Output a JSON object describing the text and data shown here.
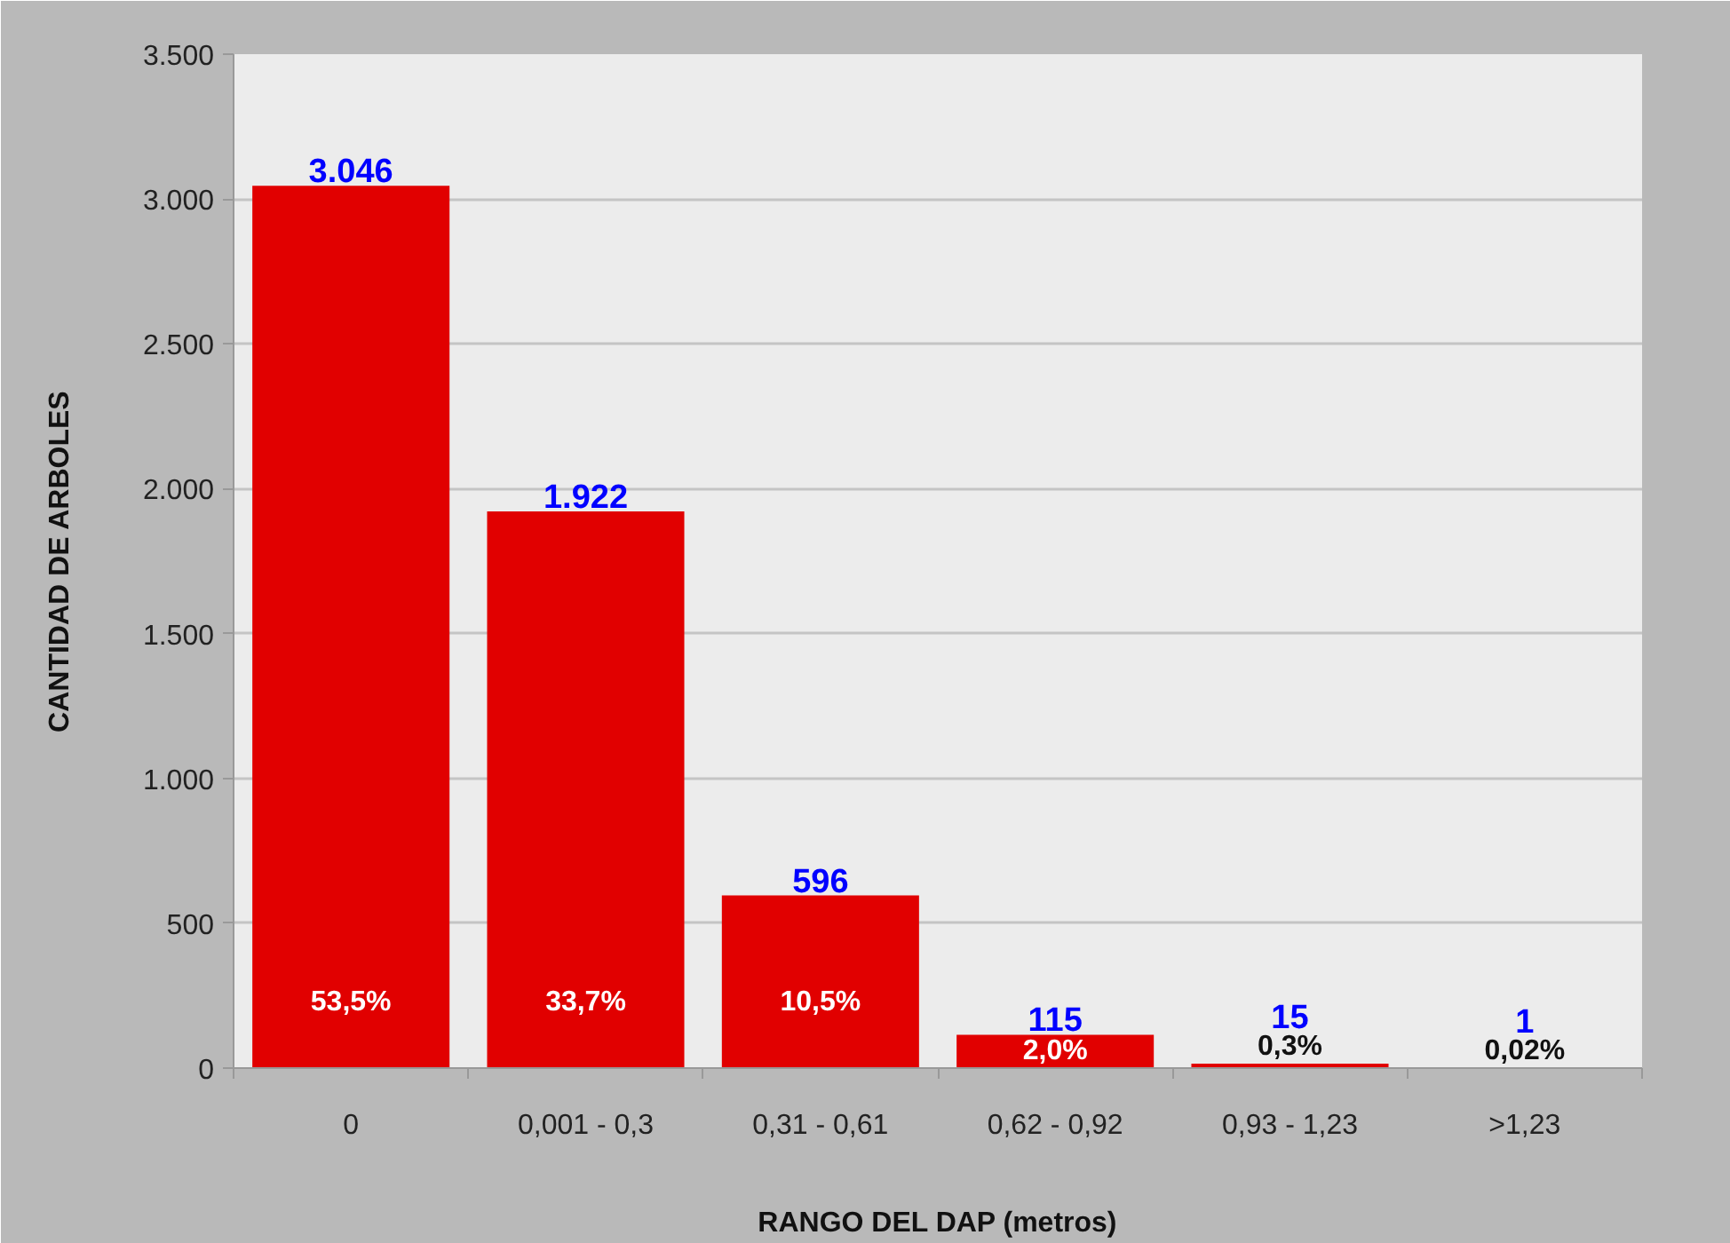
{
  "chart_data": {
    "type": "bar",
    "xlabel": "RANGO DEL DAP (metros)",
    "ylabel": "CANTIDAD DE ARBOLES",
    "categories": [
      "0",
      "0,001 - 0,3",
      "0,31 - 0,61",
      "0,62 - 0,92",
      "0,93 - 1,23",
      ">1,23"
    ],
    "values": [
      3046,
      1922,
      596,
      115,
      15,
      1
    ],
    "color": "#e10000",
    "value_labels": [
      "3.046",
      "1.922",
      "596",
      "115",
      "15",
      "1"
    ],
    "ylim": [
      0,
      3500
    ],
    "yticks": [
      0,
      500,
      {
        "value": 1000,
        "label": "1.000"
      },
      {
        "value": 1500,
        "label": "1.500"
      },
      {
        "value": 2000,
        "label": "2.000"
      },
      {
        "value": 2500,
        "label": "2.500"
      },
      {
        "value": 3000,
        "label": "3.000"
      },
      {
        "value": 3500,
        "label": "3.500"
      }
    ],
    "annotations": [
      "53,5%",
      "33,7%",
      "10,5%",
      "2,0%",
      "0,3%",
      "0,02%"
    ],
    "grid": "y"
  }
}
